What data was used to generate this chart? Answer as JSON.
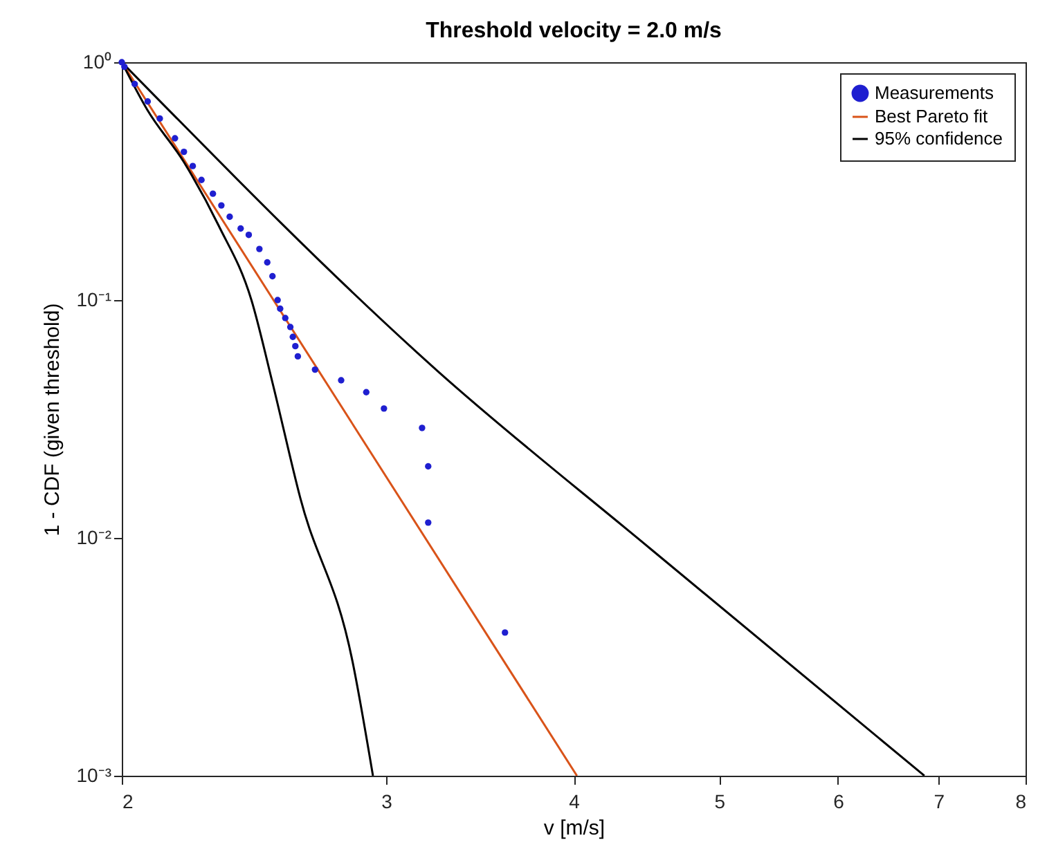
{
  "chart_data": {
    "type": "scatter",
    "title": "Threshold velocity = 2.0 m/s",
    "xlabel": "v [m/s]",
    "ylabel": "1 - CDF (given threshold)",
    "log": "xy",
    "xlim": [
      2,
      8
    ],
    "xticks": [
      2,
      3,
      4,
      5,
      6,
      7,
      8
    ],
    "ylim": [
      0.001,
      1
    ],
    "yticks": [
      {
        "value": 1,
        "label": "10⁰"
      },
      {
        "value": 0.1,
        "label": "10⁻¹"
      },
      {
        "value": 0.01,
        "label": "10⁻²"
      },
      {
        "value": 0.001,
        "label": "10⁻³"
      }
    ],
    "grid": false,
    "legend": "top right",
    "series": [
      {
        "name": "Measurements",
        "marker": "circle",
        "color": "#1f1fd0",
        "x": [
          2.0,
          2.008,
          2.04,
          2.081,
          2.12,
          2.17,
          2.2,
          2.23,
          2.26,
          2.3,
          2.33,
          2.36,
          2.4,
          2.43,
          2.47,
          2.5,
          2.52,
          2.54,
          2.55,
          2.57,
          2.59,
          2.6,
          2.61,
          2.62,
          2.69,
          2.8,
          2.91,
          2.99,
          3.17,
          3.2,
          3.2,
          3.6
        ],
        "values": [
          1,
          0.957,
          0.81,
          0.684,
          0.58,
          0.479,
          0.42,
          0.366,
          0.32,
          0.28,
          0.25,
          0.224,
          0.2,
          0.188,
          0.164,
          0.144,
          0.126,
          0.1,
          0.092,
          0.084,
          0.077,
          0.07,
          0.064,
          0.058,
          0.051,
          0.046,
          0.041,
          0.035,
          0.029,
          0.02,
          0.0116,
          0.004
        ]
      },
      {
        "name": "Best Pareto fit",
        "type": "line",
        "line_style": "solid",
        "color": "#d95319",
        "x": [
          2,
          4.02
        ],
        "values": [
          1,
          0.001
        ]
      },
      {
        "name": "95% confidence",
        "type": "line",
        "line_style": "solid",
        "color": "#000000",
        "x": [
          2,
          2.08,
          2.2,
          2.32,
          2.44,
          2.52,
          2.63,
          2.85,
          2.94
        ],
        "values": [
          1,
          0.63,
          0.38,
          0.206,
          0.1,
          0.045,
          0.0147,
          0.003,
          0.001
        ]
      },
      {
        "type": "line",
        "line_style": "solid",
        "color": "#000000",
        "x": [
          2,
          3.25,
          4.5,
          6.85
        ],
        "values": [
          1,
          0.05,
          0.009,
          0.001
        ]
      }
    ]
  }
}
